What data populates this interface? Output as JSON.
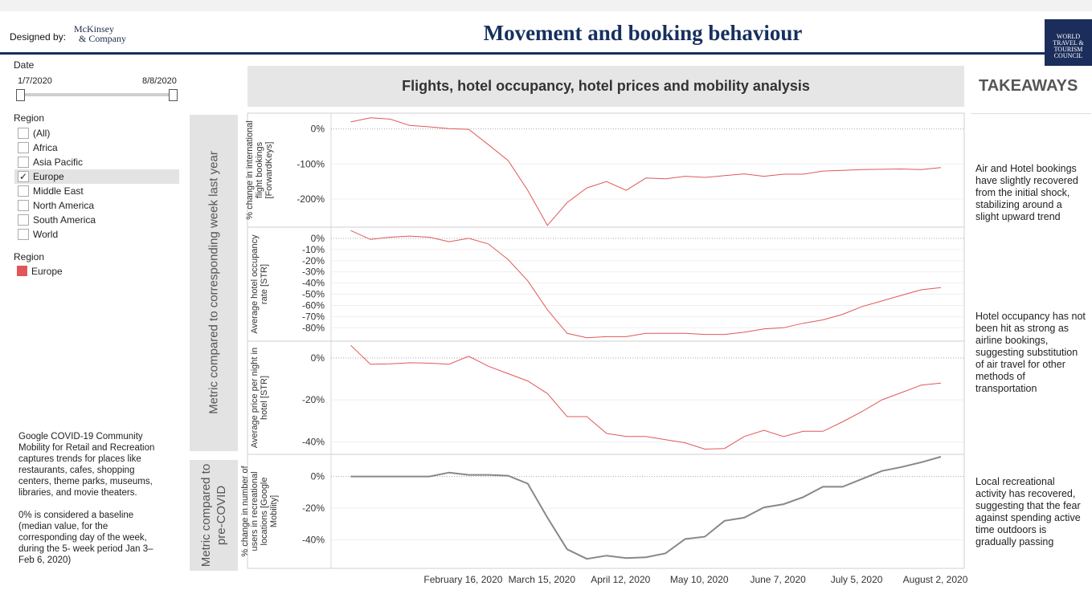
{
  "header": {
    "designed_by": "Designed by:",
    "mckinsey_line1": "McKinsey",
    "mckinsey_line2": "& Company",
    "title": "Movement and booking behaviour",
    "wttc_logo": [
      "WORLD",
      "TRAVEL &",
      "TOURISM",
      "COUNCIL"
    ]
  },
  "filters": {
    "date_label": "Date",
    "date_start": "1/7/2020",
    "date_end": "8/8/2020",
    "region_label": "Region",
    "regions": [
      {
        "label": "(All)",
        "checked": false
      },
      {
        "label": "Africa",
        "checked": false
      },
      {
        "label": "Asia Pacific",
        "checked": false
      },
      {
        "label": "Europe",
        "checked": true
      },
      {
        "label": "Middle East",
        "checked": false
      },
      {
        "label": "North America",
        "checked": false
      },
      {
        "label": "South America",
        "checked": false
      },
      {
        "label": "World",
        "checked": false
      }
    ],
    "legend_label": "Region",
    "legend_item": "Europe",
    "legend_color": "#e15759"
  },
  "notes": {
    "para1": "Google COVID-19 Community Mobility for Retail and Recreation captures trends for places like restaurants, cafes, shopping centers, theme parks, museums, libraries, and movie theaters.",
    "para2": "0% is considered a baseline (median value, for the corresponding day of the week, during the 5- week period Jan 3–Feb 6, 2020)"
  },
  "bands": {
    "band1": "Metric compared to corresponding week last year",
    "band2_line1": "Metric compared to",
    "band2_line2": "pre-COVID"
  },
  "chart_header": "Flights, hotel occupancy, hotel prices and mobility analysis",
  "takeaways": {
    "title": "TAKEAWAYS",
    "items": [
      "Air and Hotel bookings have slightly recovered from the initial shock, stabilizing around a slight upward trend",
      "Hotel occupancy has not been hit as strong as airline bookings, suggesting substitution of air travel for other methods of transportation",
      "Local recreational activity has recovered, suggesting that the fear against spending active time outdoors is gradually passing"
    ]
  },
  "chart_data": [
    {
      "type": "line",
      "ylabel": "% change in international flight bookings [ForwardKeys]",
      "yticks": [
        "0%",
        "-100%",
        "-200%"
      ],
      "ytick_values": [
        0,
        -100,
        -200
      ],
      "ylim": [
        -280,
        45
      ],
      "color": "#e15759",
      "series": [
        {
          "name": "Europe",
          "x": [
            "2020-01-07",
            "2020-01-14",
            "2020-01-21",
            "2020-01-28",
            "2020-02-04",
            "2020-02-11",
            "2020-02-18",
            "2020-02-25",
            "2020-03-03",
            "2020-03-10",
            "2020-03-17",
            "2020-03-24",
            "2020-03-31",
            "2020-04-07",
            "2020-04-14",
            "2020-04-21",
            "2020-04-28",
            "2020-05-05",
            "2020-05-12",
            "2020-05-19",
            "2020-05-26",
            "2020-06-02",
            "2020-06-09",
            "2020-06-16",
            "2020-06-23",
            "2020-06-30",
            "2020-07-07",
            "2020-07-14",
            "2020-07-21",
            "2020-07-28",
            "2020-08-04"
          ],
          "values": [
            20,
            32,
            28,
            10,
            6,
            1,
            -1,
            -45,
            -90,
            -175,
            -275,
            -210,
            -168,
            -150,
            -175,
            -140,
            -142,
            -135,
            -138,
            -133,
            -128,
            -135,
            -129,
            -129,
            -120,
            -118,
            -116,
            -115,
            -114,
            -116,
            -110
          ]
        }
      ]
    },
    {
      "type": "line",
      "ylabel": "Average hotel occupancy rate [STR]",
      "yticks": [
        "0%",
        "-10%",
        "-20%",
        "-30%",
        "-40%",
        "-50%",
        "-60%",
        "-70%",
        "-80%"
      ],
      "ytick_values": [
        0,
        -10,
        -20,
        -30,
        -40,
        -50,
        -60,
        -70,
        -80
      ],
      "ylim": [
        -92,
        10
      ],
      "color": "#e15759",
      "series": [
        {
          "name": "Europe",
          "x": [
            "2020-01-07",
            "2020-01-14",
            "2020-01-21",
            "2020-01-28",
            "2020-02-04",
            "2020-02-11",
            "2020-02-18",
            "2020-02-25",
            "2020-03-03",
            "2020-03-10",
            "2020-03-17",
            "2020-03-24",
            "2020-03-31",
            "2020-04-07",
            "2020-04-14",
            "2020-04-21",
            "2020-04-28",
            "2020-05-05",
            "2020-05-12",
            "2020-05-19",
            "2020-05-26",
            "2020-06-02",
            "2020-06-09",
            "2020-06-16",
            "2020-06-23",
            "2020-06-30",
            "2020-07-07",
            "2020-07-14",
            "2020-07-21",
            "2020-07-28",
            "2020-08-04"
          ],
          "values": [
            7,
            -1,
            1,
            2,
            1,
            -3,
            0,
            -5,
            -19,
            -38,
            -64,
            -85,
            -89,
            -88,
            -88,
            -85,
            -85,
            -85,
            -86,
            -86,
            -84,
            -81,
            -80,
            -76,
            -73,
            -68,
            -61,
            -56,
            -51,
            -46,
            -44
          ]
        }
      ]
    },
    {
      "type": "line",
      "ylabel": "Average price per night in hotel [STR]",
      "yticks": [
        "0%",
        "-20%",
        "-40%"
      ],
      "ytick_values": [
        0,
        -20,
        -40
      ],
      "ylim": [
        -46,
        8
      ],
      "color": "#e15759",
      "series": [
        {
          "name": "Europe",
          "x": [
            "2020-01-07",
            "2020-01-14",
            "2020-01-21",
            "2020-01-28",
            "2020-02-04",
            "2020-02-11",
            "2020-02-18",
            "2020-02-25",
            "2020-03-03",
            "2020-03-10",
            "2020-03-17",
            "2020-03-24",
            "2020-03-31",
            "2020-04-07",
            "2020-04-14",
            "2020-04-21",
            "2020-04-28",
            "2020-05-05",
            "2020-05-12",
            "2020-05-19",
            "2020-05-26",
            "2020-06-02",
            "2020-06-09",
            "2020-06-16",
            "2020-06-23",
            "2020-06-30",
            "2020-07-07",
            "2020-07-14",
            "2020-07-21",
            "2020-07-28",
            "2020-08-04"
          ],
          "values": [
            6,
            -3,
            -2.8,
            -2.3,
            -2.5,
            -3,
            0.8,
            -4,
            -7.5,
            -11,
            -17,
            -28,
            -28,
            -36,
            -37.5,
            -37.5,
            -39,
            -40.5,
            -43.5,
            -43.2,
            -37.5,
            -34.5,
            -37.5,
            -35,
            -35,
            -30.5,
            -25.5,
            -20,
            -16.5,
            -13,
            -12
          ]
        }
      ]
    },
    {
      "type": "line",
      "ylabel": "% change in number of users in recreational locations [Google Mobility]",
      "yticks": [
        "0%",
        "-20%",
        "-40%"
      ],
      "ytick_values": [
        0,
        -20,
        -40
      ],
      "ylim": [
        -58,
        14
      ],
      "color": "#888888",
      "series": [
        {
          "name": "Europe",
          "x": [
            "2020-01-07",
            "2020-01-14",
            "2020-01-21",
            "2020-01-28",
            "2020-02-04",
            "2020-02-11",
            "2020-02-18",
            "2020-02-25",
            "2020-03-03",
            "2020-03-10",
            "2020-03-17",
            "2020-03-24",
            "2020-03-31",
            "2020-04-07",
            "2020-04-14",
            "2020-04-21",
            "2020-04-28",
            "2020-05-05",
            "2020-05-12",
            "2020-05-19",
            "2020-05-26",
            "2020-06-02",
            "2020-06-09",
            "2020-06-16",
            "2020-06-23",
            "2020-06-30",
            "2020-07-07",
            "2020-07-14",
            "2020-07-21",
            "2020-07-28",
            "2020-08-04"
          ],
          "values": [
            0,
            0,
            0,
            0,
            0,
            2.5,
            1,
            1,
            0.5,
            -4.5,
            -26,
            -46,
            -52,
            -50,
            -51.5,
            -51,
            -48.5,
            -39.5,
            -38,
            -28,
            -26,
            -19.5,
            -17.5,
            -13,
            -6.5,
            -6.5,
            -1.5,
            3.5,
            6,
            9,
            12.5
          ]
        }
      ]
    }
  ],
  "xaxis": {
    "ticks": [
      {
        "label": "February 16, 2020",
        "date": "2020-02-16"
      },
      {
        "label": "March 15, 2020",
        "date": "2020-03-15"
      },
      {
        "label": "April 12, 2020",
        "date": "2020-04-12"
      },
      {
        "label": "May 10, 2020",
        "date": "2020-05-10"
      },
      {
        "label": "June 7, 2020",
        "date": "2020-06-07"
      },
      {
        "label": "July 5, 2020",
        "date": "2020-07-05"
      },
      {
        "label": "August 2, 2020",
        "date": "2020-08-02"
      }
    ],
    "range": [
      "2019-12-31",
      "2020-08-12"
    ]
  }
}
